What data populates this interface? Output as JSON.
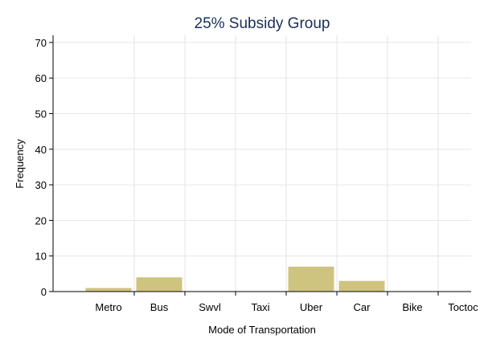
{
  "chart_data": {
    "type": "bar",
    "title": "25% Subsidy Group",
    "xlabel": "Mode of Transportation",
    "ylabel": "Frequency",
    "categories": [
      "Metro",
      "Bus",
      "Swvl",
      "Taxi",
      "Uber",
      "Car",
      "Bike",
      "Toctoc"
    ],
    "values": [
      1,
      4,
      0,
      0,
      7,
      3,
      0,
      0
    ],
    "ylim": [
      0,
      72
    ],
    "yticks": [
      0,
      10,
      20,
      30,
      40,
      50,
      60,
      70
    ],
    "grid": true,
    "bar_color": "#cec47f"
  }
}
